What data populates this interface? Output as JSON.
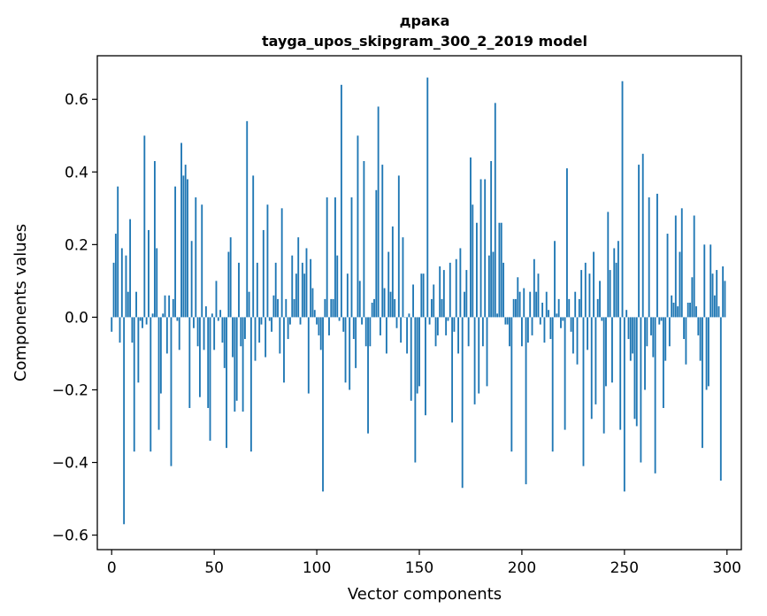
{
  "chart_data": {
    "type": "bar",
    "title": "драка",
    "subtitle": "tayga_upos_skipgram_300_2_2019 model",
    "xlabel": "Vector components",
    "ylabel": "Components values",
    "xlim": [
      -7,
      307
    ],
    "ylim": [
      -0.64,
      0.72
    ],
    "xticks": [
      0,
      50,
      100,
      150,
      200,
      250,
      300
    ],
    "yticks": [
      -0.6,
      -0.4,
      -0.2,
      0.0,
      0.2,
      0.4,
      0.6
    ],
    "ytick_labels": [
      "−0.6",
      "−0.4",
      "−0.2",
      "0.0",
      "0.2",
      "0.4",
      "0.6"
    ],
    "bar_color": "#1f77b4",
    "values": [
      -0.04,
      0.15,
      0.23,
      0.36,
      -0.07,
      0.19,
      -0.57,
      0.17,
      0.07,
      0.27,
      -0.07,
      -0.37,
      0.07,
      -0.18,
      -0.01,
      -0.03,
      0.5,
      -0.02,
      0.24,
      -0.37,
      0.01,
      0.43,
      0.19,
      -0.31,
      -0.21,
      0.01,
      0.06,
      -0.1,
      0.06,
      -0.41,
      0.05,
      0.36,
      -0.01,
      -0.09,
      0.48,
      0.39,
      0.42,
      0.38,
      -0.25,
      0.21,
      -0.03,
      0.33,
      -0.08,
      -0.22,
      0.31,
      -0.09,
      0.03,
      -0.25,
      -0.34,
      0.01,
      -0.09,
      0.1,
      -0.01,
      0.02,
      -0.07,
      -0.14,
      -0.36,
      0.18,
      0.22,
      -0.11,
      -0.26,
      -0.23,
      0.15,
      -0.08,
      -0.26,
      -0.06,
      0.54,
      0.07,
      -0.37,
      0.39,
      -0.12,
      0.15,
      -0.07,
      -0.02,
      0.24,
      -0.11,
      0.31,
      -0.01,
      -0.04,
      0.06,
      0.15,
      0.05,
      -0.1,
      0.3,
      -0.18,
      0.05,
      -0.06,
      -0.02,
      0.17,
      0.05,
      0.12,
      0.22,
      -0.02,
      0.15,
      0.12,
      0.19,
      -0.21,
      0.16,
      0.08,
      0.02,
      -0.02,
      -0.05,
      -0.09,
      -0.48,
      0.05,
      0.33,
      -0.05,
      0.05,
      0.05,
      0.33,
      0.17,
      -0.01,
      0.64,
      -0.04,
      -0.18,
      0.12,
      -0.2,
      0.33,
      -0.06,
      -0.14,
      0.5,
      0.1,
      -0.02,
      0.43,
      -0.08,
      -0.32,
      -0.08,
      0.04,
      0.05,
      0.35,
      0.58,
      -0.05,
      0.42,
      0.08,
      -0.1,
      0.18,
      0.07,
      0.25,
      0.05,
      -0.03,
      0.39,
      -0.07,
      0.22,
      0.0,
      -0.1,
      0.01,
      -0.23,
      0.09,
      -0.4,
      -0.21,
      -0.19,
      0.12,
      0.12,
      -0.27,
      0.66,
      -0.02,
      0.05,
      0.09,
      -0.08,
      -0.05,
      0.14,
      0.05,
      0.13,
      -0.05,
      -0.01,
      0.15,
      -0.29,
      -0.04,
      0.16,
      -0.1,
      0.19,
      -0.47,
      0.07,
      0.13,
      -0.08,
      0.44,
      0.31,
      -0.24,
      0.26,
      -0.21,
      0.38,
      -0.08,
      0.38,
      -0.19,
      0.17,
      0.43,
      0.18,
      0.59,
      0.01,
      0.26,
      0.26,
      0.15,
      -0.02,
      -0.02,
      -0.08,
      -0.37,
      0.05,
      0.05,
      0.11,
      0.07,
      -0.08,
      0.08,
      -0.46,
      -0.07,
      0.07,
      -0.05,
      0.16,
      0.07,
      0.12,
      -0.02,
      0.04,
      -0.07,
      0.07,
      0.02,
      -0.06,
      -0.37,
      0.21,
      0.01,
      0.05,
      -0.03,
      -0.01,
      -0.31,
      0.41,
      0.05,
      -0.04,
      -0.1,
      0.07,
      -0.13,
      0.05,
      0.13,
      -0.41,
      0.15,
      -0.09,
      0.12,
      -0.28,
      0.18,
      -0.24,
      0.05,
      0.1,
      -0.01,
      -0.32,
      -0.19,
      0.29,
      0.13,
      -0.18,
      0.19,
      0.15,
      0.21,
      -0.31,
      0.65,
      -0.48,
      0.02,
      -0.06,
      -0.12,
      -0.1,
      -0.28,
      -0.3,
      0.42,
      -0.4,
      0.45,
      -0.2,
      -0.08,
      0.33,
      -0.05,
      -0.11,
      -0.43,
      0.34,
      -0.02,
      -0.01,
      -0.25,
      -0.12,
      0.23,
      -0.08,
      0.06,
      0.04,
      0.28,
      0.03,
      0.18,
      0.3,
      -0.06,
      -0.13,
      0.04,
      0.04,
      0.11,
      0.28,
      0.03,
      -0.05,
      -0.12,
      -0.36,
      0.2,
      -0.2,
      -0.19,
      0.2,
      0.12,
      0.06,
      0.13,
      0.03,
      -0.45,
      0.14,
      0.1
    ]
  }
}
